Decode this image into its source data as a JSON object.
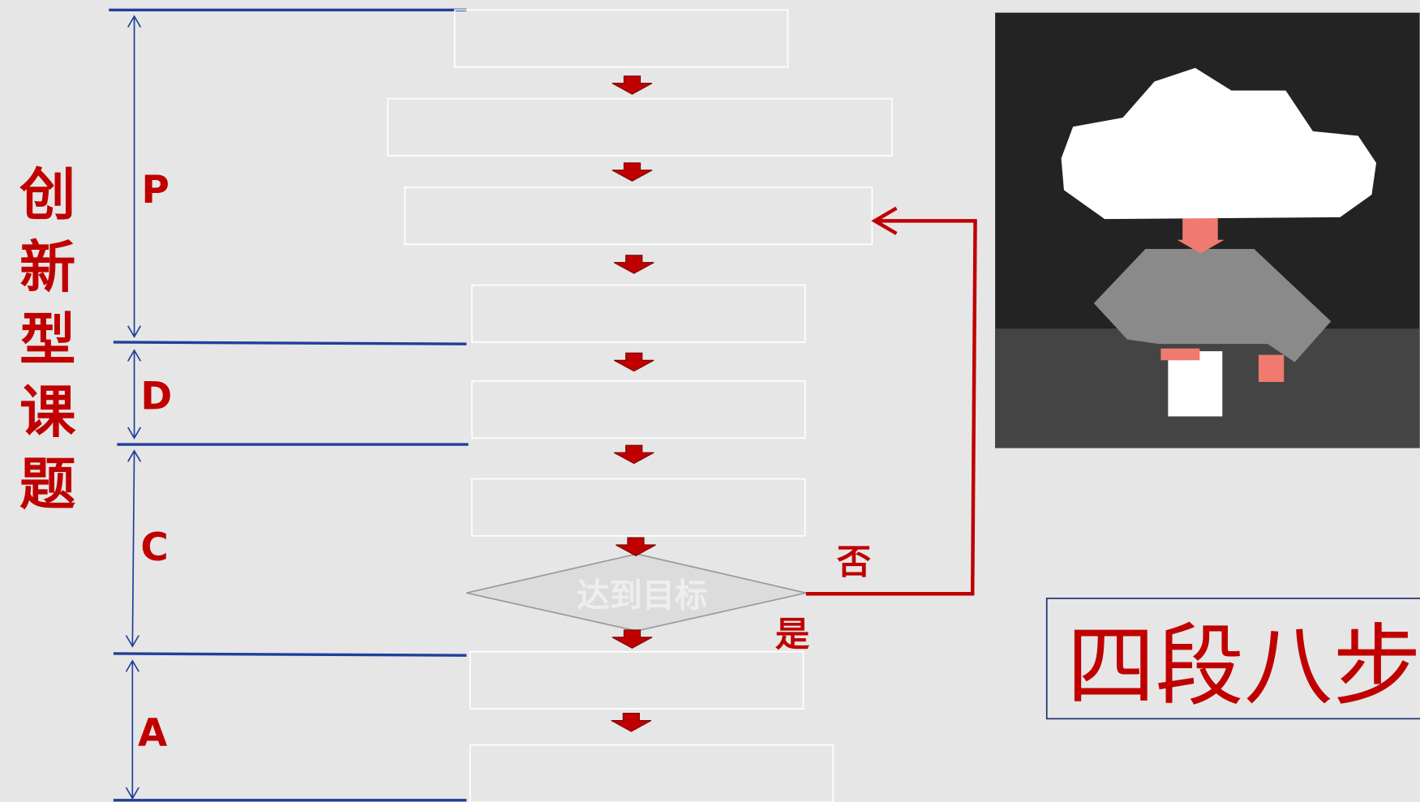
{
  "sidebar_title": "创新型课题",
  "phases": [
    "P",
    "D",
    "C",
    "A"
  ],
  "decision": {
    "label": "达到目标",
    "no": "否",
    "yes": "是"
  },
  "caption": "四段八步"
}
